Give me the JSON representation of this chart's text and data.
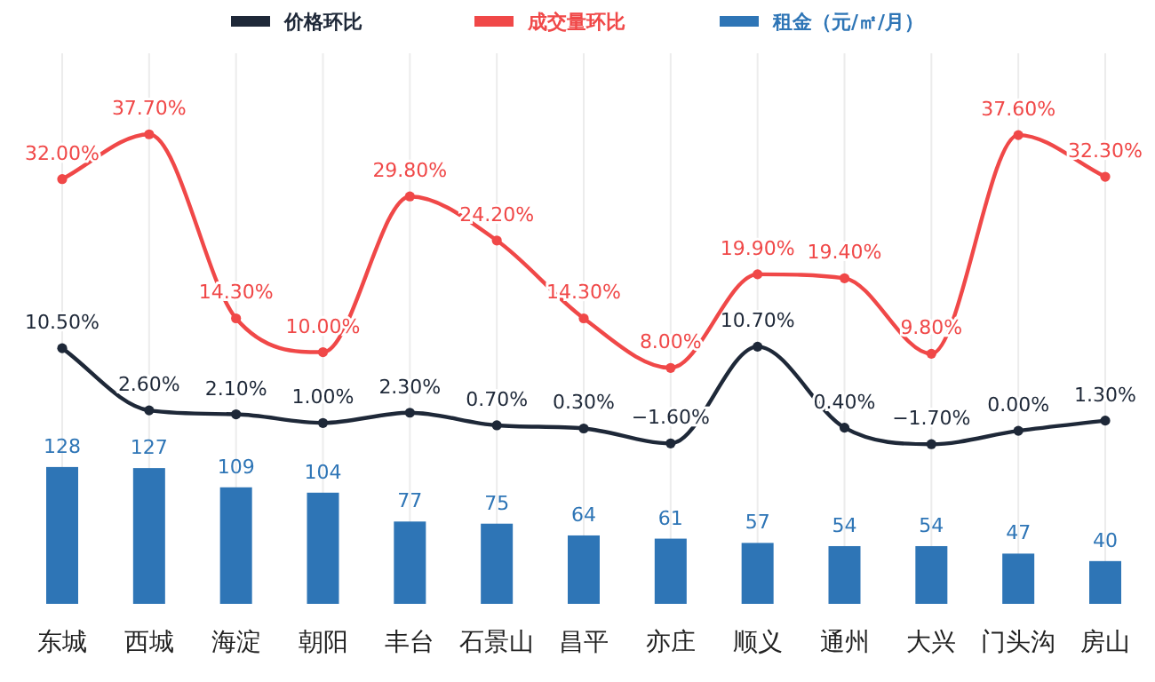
{
  "chart_data": {
    "type": "bar",
    "categories": [
      "东城",
      "西城",
      "海淀",
      "朝阳",
      "丰台",
      "石景山",
      "昌平",
      "亦庄",
      "顺义",
      "通州",
      "大兴",
      "门头沟",
      "房山"
    ],
    "series": [
      {
        "name": "价格环比",
        "type": "line",
        "color": "#1e2838",
        "values": [
          10.5,
          2.6,
          2.1,
          1.0,
          2.3,
          0.7,
          0.3,
          -1.6,
          10.7,
          0.4,
          -1.7,
          0.0,
          1.3
        ],
        "value_labels": [
          "10.50%",
          "2.60%",
          "2.10%",
          "1.00%",
          "2.30%",
          "0.70%",
          "0.30%",
          "−1.60%",
          "10.70%",
          "0.40%",
          "−1.70%",
          "0.00%",
          "1.30%"
        ]
      },
      {
        "name": "成交量环比",
        "type": "line",
        "color": "#f04848",
        "values": [
          32.0,
          37.7,
          14.3,
          10.0,
          29.8,
          24.2,
          14.3,
          8.0,
          19.9,
          19.4,
          9.8,
          37.6,
          32.3
        ],
        "value_labels": [
          "32.00%",
          "37.70%",
          "14.30%",
          "10.00%",
          "29.80%",
          "24.20%",
          "14.30%",
          "8.00%",
          "19.90%",
          "19.40%",
          "9.80%",
          "37.60%",
          "32.30%"
        ]
      },
      {
        "name": "租金（元/㎡/月）",
        "axis": "y2",
        "color": "#2e75b6",
        "values": [
          128,
          127,
          109,
          104,
          77,
          75,
          64,
          61,
          57,
          54,
          54,
          47,
          40
        ]
      }
    ],
    "ylim": [
      -22,
      48
    ],
    "y2lim": [
      0,
      515
    ],
    "tick_labels": "x",
    "marker": "circle",
    "grid": "x",
    "legend": "top",
    "data_labels": true
  }
}
